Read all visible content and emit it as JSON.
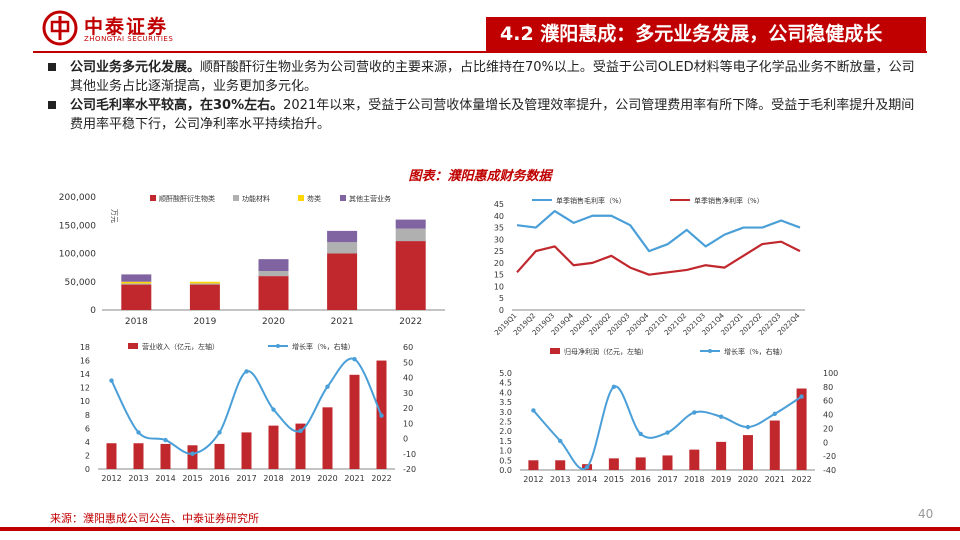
{
  "header": {
    "logo_cn": "中泰证券",
    "logo_en": "ZHONGTAI SECURITIES",
    "section_title": "4.2 濮阳惠成：多元业务发展，公司稳健成长"
  },
  "bullets": [
    {
      "bold": "公司业务多元化发展。",
      "text": "顺酐酸酐衍生物业务为公司营收的主要来源，占比维持在70%以上。受益于公司OLED材料等电子化学品业务不断放量，公司其他业务占比逐渐提高，业务更加多元化。"
    },
    {
      "bold": "公司毛利率水平较高，在30%左右。",
      "text": "2021年以来，受益于公司营收体量增长及管理效率提升，公司管理费用率有所下降。受益于毛利率提升及期间费用率平稳下行，公司净利率水平持续抬升。"
    }
  ],
  "figure_title": "图表：濮阳惠成财务数据",
  "source": "来源：濮阳惠成公司公告、中泰证券研究所",
  "page_number": "40",
  "colors": {
    "brand_red": "#c00000",
    "bar_red": "#c0282d",
    "grey": "#b0b0b0",
    "yellow": "#ffd700",
    "purple": "#8064a2",
    "line_blue": "#4a9fd8"
  },
  "chart_data": [
    {
      "type": "bar",
      "stacked": true,
      "unit_label": "万元",
      "categories": [
        "2018",
        "2019",
        "2020",
        "2021",
        "2022"
      ],
      "series": [
        {
          "name": "顺酐酸酐衍生物类",
          "color": "#c0282d",
          "values": [
            45000,
            45000,
            60000,
            100000,
            122000
          ]
        },
        {
          "name": "功能材料",
          "color": "#b0b0b0",
          "values": [
            2000,
            2000,
            9000,
            20000,
            22000
          ]
        },
        {
          "name": "芴类",
          "color": "#ffd700",
          "values": [
            3000,
            3000,
            0,
            0,
            0
          ]
        },
        {
          "name": "其他主营业务",
          "color": "#8064a2",
          "values": [
            13000,
            0,
            21000,
            20000,
            16000
          ]
        }
      ],
      "yticks": [
        "0",
        "50,000",
        "100,000",
        "150,000",
        "200,000"
      ],
      "ylim": [
        0,
        200000
      ],
      "legend_position": "top"
    },
    {
      "type": "line",
      "categories": [
        "2019Q1",
        "2019Q2",
        "2019Q3",
        "2019Q4",
        "2020Q1",
        "2020Q2",
        "2020Q3",
        "2020Q4",
        "2021Q1",
        "2021Q2",
        "2021Q3",
        "2021Q4",
        "2022Q1",
        "2022Q2",
        "2022Q3",
        "2022Q4"
      ],
      "series": [
        {
          "name": "单季销售毛利率（%）",
          "color": "#4a9fd8",
          "values": [
            36,
            35,
            42,
            37,
            40,
            40,
            36,
            25,
            28,
            34,
            27,
            32,
            35,
            35,
            38,
            35
          ]
        },
        {
          "name": "单季销售净利率（%）",
          "color": "#c0282d",
          "values": [
            16,
            25,
            27,
            19,
            20,
            23,
            18,
            15,
            16,
            17,
            19,
            18,
            23,
            28,
            29,
            25
          ]
        }
      ],
      "yticks": [
        "0",
        "5",
        "10",
        "15",
        "20",
        "25",
        "30",
        "35",
        "40",
        "45"
      ],
      "ylim": [
        0,
        45
      ],
      "legend_position": "top"
    },
    {
      "type": "bar+line",
      "categories": [
        "2012",
        "2013",
        "2014",
        "2015",
        "2016",
        "2017",
        "2018",
        "2019",
        "2020",
        "2021",
        "2022"
      ],
      "bar_series": {
        "name": "营业收入（亿元，左轴）",
        "color": "#c0282d",
        "values": [
          3.8,
          3.8,
          3.7,
          3.5,
          3.7,
          5.4,
          6.4,
          6.7,
          9.1,
          13.9,
          16
        ]
      },
      "line_series": {
        "name": "增长率（%，右轴）",
        "color": "#4a9fd8",
        "values": [
          38,
          4,
          -1,
          -10,
          4,
          44,
          19,
          5,
          34,
          52,
          15
        ]
      },
      "left_yticks": [
        "0",
        "2",
        "4",
        "6",
        "8",
        "10",
        "12",
        "14",
        "16",
        "18"
      ],
      "left_ylim": [
        0,
        18
      ],
      "right_yticks": [
        "-20",
        "-10",
        "0",
        "10",
        "20",
        "30",
        "40",
        "50",
        "60"
      ],
      "right_ylim": [
        -20,
        60
      ],
      "legend_position": "top"
    },
    {
      "type": "bar+line",
      "categories": [
        "2012",
        "2013",
        "2014",
        "2015",
        "2016",
        "2017",
        "2018",
        "2019",
        "2020",
        "2021",
        "2022"
      ],
      "bar_series": {
        "name": "归母净利润（亿元，左轴）",
        "color": "#c0282d",
        "values": [
          0.5,
          0.5,
          0.3,
          0.6,
          0.65,
          0.75,
          1.05,
          1.45,
          1.8,
          2.55,
          4.2
        ]
      },
      "line_series": {
        "name": "增长率（%，右轴）",
        "color": "#4a9fd8",
        "values": [
          46,
          2,
          -36,
          80,
          12,
          14,
          43,
          37,
          22,
          41,
          66
        ]
      },
      "left_yticks": [
        "0.0",
        "0.5",
        "1.0",
        "1.5",
        "2.0",
        "2.5",
        "3.0",
        "3.5",
        "4.0",
        "4.5",
        "5.0"
      ],
      "left_ylim": [
        0,
        5
      ],
      "right_yticks": [
        "-40",
        "-20",
        "0",
        "20",
        "40",
        "60",
        "80",
        "100"
      ],
      "right_ylim": [
        -40,
        100
      ],
      "legend_position": "top"
    }
  ]
}
